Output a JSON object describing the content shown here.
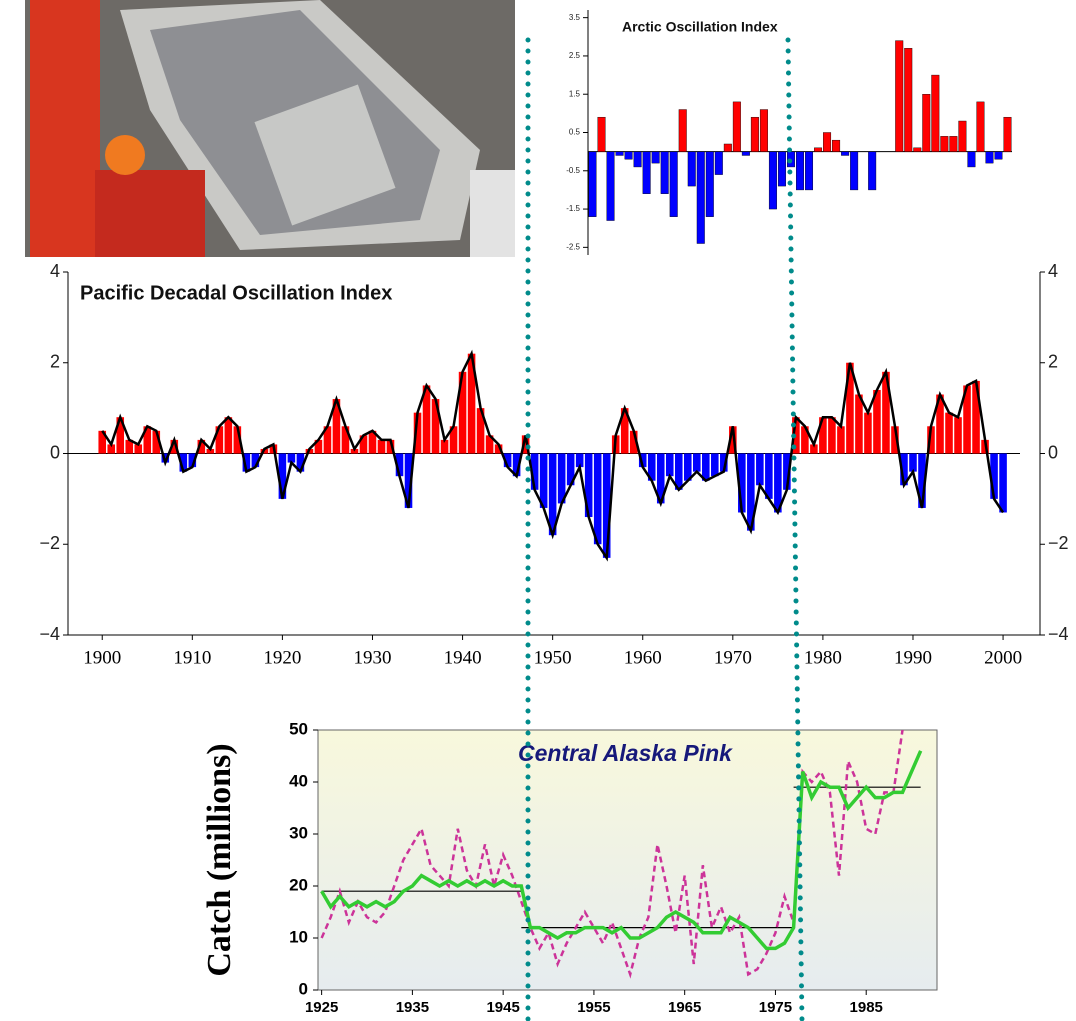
{
  "chart_data": [
    {
      "type": "bar",
      "title": "Arctic Oscillation Index",
      "values": [
        -1.7,
        0.9,
        -1.8,
        -0.1,
        -0.2,
        -0.4,
        -1.1,
        -0.3,
        -1.1,
        -1.7,
        1.1,
        -0.9,
        -2.4,
        -1.7,
        -0.6,
        0.2,
        1.3,
        -0.1,
        0.9,
        1.1,
        -1.5,
        -0.9,
        -0.4,
        -1.0,
        -1.0,
        0.1,
        0.5,
        0.3,
        -0.1,
        -1.0,
        0.0,
        -1.0,
        0.0,
        0.0,
        2.9,
        2.7,
        0.1,
        1.5,
        2.0,
        0.4,
        0.4,
        0.8,
        -0.4,
        1.3,
        -0.3,
        -0.2,
        0.9
      ],
      "colors": {
        "positive": "#ff0000",
        "negative": "#0000ff"
      },
      "ylim": [
        -2.7,
        3.7
      ],
      "yticks": [
        3.5,
        2.5,
        1.5,
        0.5,
        -0.5,
        -1.5,
        -2.5
      ]
    },
    {
      "type": "bar",
      "title": "Pacific Decadal Oscillation Index",
      "x": [
        1900,
        1901,
        1902,
        1903,
        1904,
        1905,
        1906,
        1907,
        1908,
        1909,
        1910,
        1911,
        1912,
        1913,
        1914,
        1915,
        1916,
        1917,
        1918,
        1919,
        1920,
        1921,
        1922,
        1923,
        1924,
        1925,
        1926,
        1927,
        1928,
        1929,
        1930,
        1931,
        1932,
        1933,
        1934,
        1935,
        1936,
        1937,
        1938,
        1939,
        1940,
        1941,
        1942,
        1943,
        1944,
        1945,
        1946,
        1947,
        1948,
        1949,
        1950,
        1951,
        1952,
        1953,
        1954,
        1955,
        1956,
        1957,
        1958,
        1959,
        1960,
        1961,
        1962,
        1963,
        1964,
        1965,
        1966,
        1967,
        1968,
        1969,
        1970,
        1971,
        1972,
        1973,
        1974,
        1975,
        1976,
        1977,
        1978,
        1979,
        1980,
        1981,
        1982,
        1983,
        1984,
        1985,
        1986,
        1987,
        1988,
        1989,
        1990,
        1991,
        1992,
        1993,
        1994,
        1995,
        1996,
        1997,
        1998,
        1999,
        2000
      ],
      "values": [
        0.5,
        0.2,
        0.8,
        0.3,
        0.2,
        0.6,
        0.5,
        -0.2,
        0.3,
        -0.4,
        -0.3,
        0.3,
        0.1,
        0.6,
        0.8,
        0.6,
        -0.4,
        -0.3,
        0.1,
        0.2,
        -1.0,
        -0.2,
        -0.4,
        0.1,
        0.3,
        0.6,
        1.2,
        0.6,
        0.1,
        0.4,
        0.5,
        0.3,
        0.3,
        -0.5,
        -1.2,
        0.9,
        1.5,
        1.2,
        0.3,
        0.6,
        1.8,
        2.2,
        1.0,
        0.4,
        0.2,
        -0.3,
        -0.5,
        0.4,
        -0.8,
        -1.2,
        -1.8,
        -1.1,
        -0.7,
        -0.3,
        -1.4,
        -2.0,
        -2.3,
        0.4,
        1.0,
        0.5,
        -0.3,
        -0.6,
        -1.1,
        -0.5,
        -0.8,
        -0.6,
        -0.4,
        -0.6,
        -0.5,
        -0.4,
        0.6,
        -1.3,
        -1.7,
        -0.7,
        -1.0,
        -1.3,
        -0.8,
        0.8,
        0.6,
        0.2,
        0.8,
        0.8,
        0.6,
        2.0,
        1.3,
        0.9,
        1.4,
        1.8,
        0.6,
        -0.7,
        -0.4,
        -1.2,
        0.6,
        1.3,
        0.9,
        0.8,
        1.5,
        1.6,
        0.3,
        -1.0,
        -1.3
      ],
      "colors": {
        "positive": "#ff0000",
        "negative": "#0000ff",
        "line": "#000000"
      },
      "xlim": [
        1896.2,
        2004.1
      ],
      "xticks": [
        1900,
        1910,
        1920,
        1930,
        1940,
        1950,
        1960,
        1970,
        1980,
        1990,
        2000
      ],
      "ylim": [
        -4,
        4
      ],
      "yticks": [
        {
          "value": -4,
          "label": "−4"
        },
        {
          "value": -2,
          "label": "−2"
        },
        0,
        2,
        4
      ]
    },
    {
      "type": "line",
      "title": "Central Alaska Pink",
      "y_label": "Catch (millions)",
      "x": [
        1925,
        1926,
        1927,
        1928,
        1929,
        1930,
        1931,
        1932,
        1933,
        1934,
        1935,
        1936,
        1937,
        1938,
        1939,
        1940,
        1941,
        1942,
        1943,
        1944,
        1945,
        1946,
        1947,
        1948,
        1949,
        1950,
        1951,
        1952,
        1953,
        1954,
        1955,
        1956,
        1957,
        1958,
        1959,
        1960,
        1961,
        1962,
        1963,
        1964,
        1965,
        1966,
        1967,
        1968,
        1969,
        1970,
        1971,
        1972,
        1973,
        1974,
        1975,
        1976,
        1977,
        1978,
        1979,
        1980,
        1981,
        1982,
        1983,
        1984,
        1985,
        1986,
        1987,
        1988,
        1989,
        1990,
        1991
      ],
      "series": [
        {
          "color": "#cc3399",
          "dashed": true,
          "values": [
            10,
            14,
            19,
            13,
            17,
            14,
            13,
            15,
            20,
            25,
            28,
            31,
            24,
            22,
            20,
            31,
            23,
            20,
            28,
            20,
            26,
            22,
            17,
            12,
            8,
            11,
            5,
            9,
            12,
            15,
            12,
            9,
            13,
            8,
            3,
            10,
            14,
            28,
            20,
            11,
            22,
            5,
            24,
            12,
            16,
            11,
            14,
            3,
            4,
            7,
            11,
            18,
            13,
            42,
            40,
            42,
            38,
            22,
            44,
            40,
            31,
            30,
            38,
            38,
            50,
            null,
            null
          ]
        },
        {
          "color": "#33cc33",
          "dashed": false,
          "values": [
            19,
            16,
            18,
            16,
            17,
            16,
            17,
            16,
            17,
            19,
            20,
            22,
            21,
            20,
            21,
            20,
            21,
            20,
            21,
            20,
            21,
            20,
            20,
            12,
            12,
            11,
            10,
            11,
            11,
            12,
            12,
            12,
            11,
            12,
            10,
            10,
            11,
            12,
            14,
            15,
            14,
            13,
            11,
            11,
            11,
            14,
            13,
            12,
            10,
            8,
            8,
            9,
            12,
            42,
            37,
            40,
            39,
            39,
            35,
            37,
            39,
            37,
            37,
            38,
            38,
            42,
            46
          ]
        }
      ],
      "means": [
        {
          "start": 1925,
          "end": 1947,
          "value": 19
        },
        {
          "start": 1947,
          "end": 1977,
          "value": 12
        },
        {
          "start": 1977,
          "end": 1991,
          "value": 39
        }
      ],
      "xlim": [
        1924.6,
        1992.8
      ],
      "xticks": [
        1925,
        1935,
        1945,
        1955,
        1965,
        1975,
        1985
      ],
      "ylim": [
        0,
        50
      ],
      "yticks": [
        0,
        10,
        20,
        30,
        40,
        50
      ]
    }
  ]
}
